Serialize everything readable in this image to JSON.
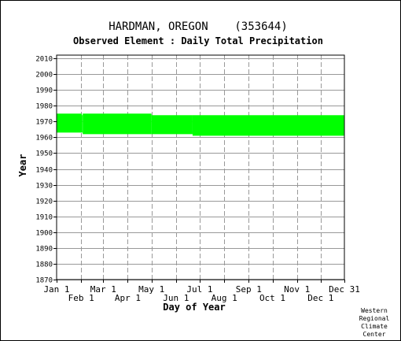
{
  "chart_data": {
    "type": "bar",
    "title": "HARDMAN, OREGON    (353644)",
    "subtitle": "Observed Element : Daily Total Precipitation",
    "xlabel": "Day of Year",
    "ylabel": "Year",
    "xlim": [
      1,
      365
    ],
    "ylim": [
      1870,
      2012
    ],
    "yticks": [
      1870,
      1880,
      1890,
      1900,
      1910,
      1920,
      1930,
      1940,
      1950,
      1960,
      1970,
      1980,
      1990,
      2000,
      2010
    ],
    "xticks_top_row": [
      {
        "label": "Jan 1",
        "day": 1
      },
      {
        "label": "Mar 1",
        "day": 60
      },
      {
        "label": "May 1",
        "day": 121
      },
      {
        "label": "Jul 1",
        "day": 182
      },
      {
        "label": "Sep 1",
        "day": 244
      },
      {
        "label": "Nov 1",
        "day": 305
      },
      {
        "label": "Dec 31",
        "day": 365
      }
    ],
    "xticks_bottom_row": [
      {
        "label": "Feb 1",
        "day": 32
      },
      {
        "label": "Apr 1",
        "day": 91
      },
      {
        "label": "Jun 1",
        "day": 152
      },
      {
        "label": "Aug 1",
        "day": 213
      },
      {
        "label": "Oct 1",
        "day": 274
      },
      {
        "label": "Dec 1",
        "day": 335
      }
    ],
    "grid": true,
    "series_color": "#00ff00",
    "coverage": [
      {
        "day_start": 1,
        "day_end": 33,
        "year_start": 1963,
        "year_end": 1975
      },
      {
        "day_start": 33,
        "day_end": 34,
        "year_start": 1963,
        "year_end": 1974
      },
      {
        "day_start": 34,
        "day_end": 121,
        "year_start": 1962,
        "year_end": 1975
      },
      {
        "day_start": 121,
        "day_end": 173,
        "year_start": 1962,
        "year_end": 1974
      },
      {
        "day_start": 173,
        "day_end": 365,
        "year_start": 1961,
        "year_end": 1974
      }
    ]
  },
  "credit": [
    "Western",
    "Regional",
    "Climate",
    "Center"
  ],
  "colors": {
    "background": "#ffffff",
    "grid": "#999999",
    "axis": "#000000",
    "data": "#00ff00"
  }
}
